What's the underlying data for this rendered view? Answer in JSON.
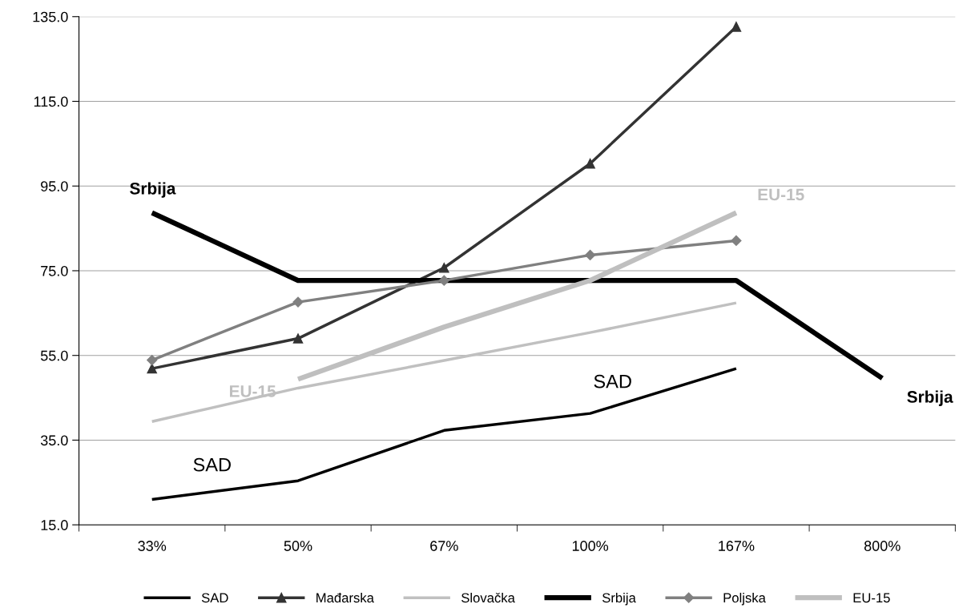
{
  "chart_data": {
    "type": "line",
    "categories": [
      "33%",
      "50%",
      "67%",
      "100%",
      "167%",
      "800%"
    ],
    "series": [
      {
        "name": "SAD",
        "color": "#000000",
        "marker": "none",
        "values": [
          21.0,
          25.4,
          37.3,
          41.3,
          51.9,
          null
        ]
      },
      {
        "name": "Mađarska",
        "color": "#333333",
        "marker": "triangle",
        "values": [
          51.9,
          59.0,
          75.7,
          100.3,
          132.6,
          null
        ]
      },
      {
        "name": "Slovačka",
        "color": "#c0c0c0",
        "marker": "none",
        "values": [
          39.4,
          47.3,
          53.8,
          60.4,
          67.4,
          null
        ]
      },
      {
        "name": "Srbija",
        "color": "#000000",
        "marker": "none",
        "values": [
          88.7,
          72.7,
          72.7,
          72.7,
          72.7,
          49.6
        ]
      },
      {
        "name": "Poljska",
        "color": "#808080",
        "marker": "diamond",
        "values": [
          53.9,
          67.6,
          72.7,
          78.7,
          82.1,
          null
        ]
      },
      {
        "name": "EU-15",
        "color": "#bfbfbf",
        "marker": "none",
        "values": [
          null,
          49.4,
          61.7,
          72.7,
          88.7,
          null
        ]
      }
    ],
    "annotations": [
      "Srbija",
      "Srbija",
      "SAD",
      "SAD",
      "EU-15",
      "EU-15"
    ],
    "ylim": [
      15,
      135
    ],
    "yticks": [
      {
        "value": 15,
        "label": "15.0"
      },
      {
        "value": 35,
        "label": "35.0"
      },
      {
        "value": 55,
        "label": "55.0"
      },
      {
        "value": 75,
        "label": "75.0"
      },
      {
        "value": 95,
        "label": "95.0"
      },
      {
        "value": 115,
        "label": "115.0"
      },
      {
        "value": 135,
        "label": "135.0"
      }
    ],
    "grid": "y",
    "legend": "bottom"
  }
}
